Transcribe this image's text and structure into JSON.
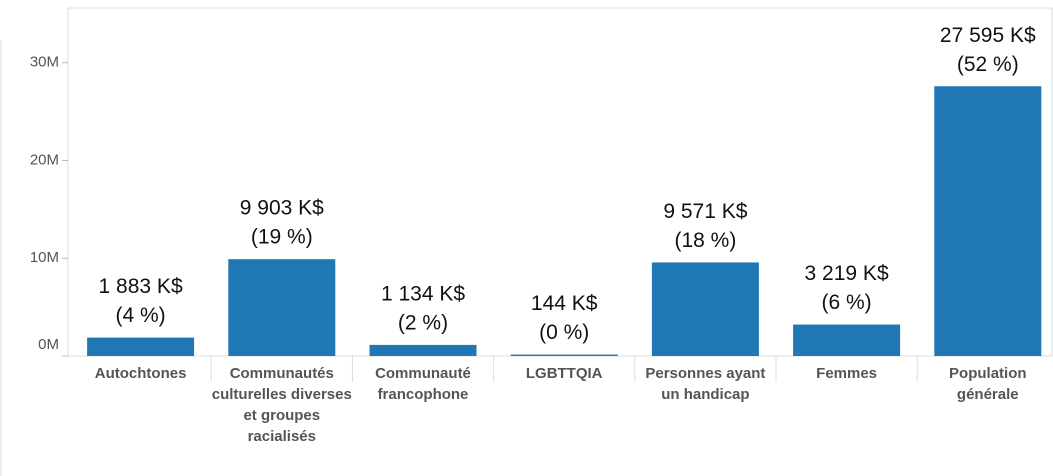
{
  "chart_data": {
    "type": "bar",
    "categories": [
      "Autochtones",
      "Communautés culturelles diverses et groupes racialisés",
      "Communauté francophone",
      "LGBTTQIA",
      "Personnes ayant un handicap",
      "Femmes",
      "Population générale"
    ],
    "values": [
      1883000,
      9903000,
      1134000,
      144000,
      9571000,
      3219000,
      27595000
    ],
    "value_labels": [
      "1 883 K$",
      "9 903 K$",
      "1 134 K$",
      "144 K$",
      "9 571 K$",
      "3 219 K$",
      "27 595 K$"
    ],
    "share_labels": [
      "(4 %)",
      "(19 %)",
      "(2 %)",
      "(0 %)",
      "(18 %)",
      "(6 %)",
      "(52 %)"
    ],
    "color": "#1f77b4",
    "ylim": [
      0,
      35600000
    ],
    "yticks": [
      {
        "value": 0,
        "label": "0M"
      },
      {
        "value": 10000000,
        "label": "10M"
      },
      {
        "value": 20000000,
        "label": "20M"
      },
      {
        "value": 30000000,
        "label": "30M"
      }
    ]
  }
}
